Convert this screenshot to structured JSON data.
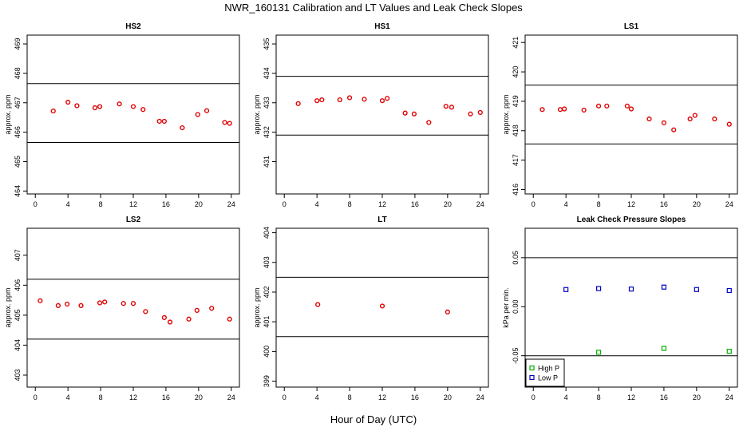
{
  "figure": {
    "title": "NWR_160131  Calibration and LT Values and Leak Check Slopes",
    "xlabel": "Hour of Day (UTC)"
  },
  "colors": {
    "cal_points": "#e00000",
    "high_p": "#00b000",
    "low_p": "#0000c8",
    "lines": "#000000"
  },
  "chart_data": [
    {
      "type": "scatter",
      "title": "HS2",
      "ylabel": "approx. ppm",
      "xlim": [
        -1,
        25
      ],
      "ylim": [
        463.9,
        469.3
      ],
      "xticks": [
        0,
        4,
        8,
        12,
        16,
        20,
        24
      ],
      "yticks": [
        464,
        465,
        466,
        467,
        468,
        469
      ],
      "hlines": [
        467.65,
        465.65
      ],
      "series": [
        {
          "color": "#e00000",
          "marker": "circle",
          "x": [
            2.2,
            4.0,
            5.1,
            7.3,
            7.9,
            10.3,
            12.0,
            13.2,
            15.2,
            15.8,
            18.0,
            19.9,
            21.0,
            23.2,
            23.8
          ],
          "y": [
            466.72,
            467.02,
            466.9,
            466.83,
            466.87,
            466.96,
            466.87,
            466.77,
            466.37,
            466.37,
            466.15,
            466.6,
            466.73,
            466.33,
            466.3
          ]
        }
      ]
    },
    {
      "type": "scatter",
      "title": "HS1",
      "ylabel": "approx. ppm",
      "xlim": [
        -1,
        25
      ],
      "ylim": [
        429.9,
        435.3
      ],
      "xticks": [
        0,
        4,
        8,
        12,
        16,
        20,
        24
      ],
      "yticks": [
        431,
        432,
        433,
        434,
        435
      ],
      "hlines": [
        433.9,
        431.9
      ],
      "series": [
        {
          "color": "#e00000",
          "marker": "circle",
          "x": [
            1.7,
            4.0,
            4.6,
            6.8,
            8.0,
            9.8,
            12.0,
            12.6,
            14.8,
            15.9,
            17.7,
            19.8,
            20.5,
            22.8,
            24.0
          ],
          "y": [
            432.97,
            433.07,
            433.1,
            433.1,
            433.17,
            433.12,
            433.07,
            433.15,
            432.65,
            432.62,
            432.33,
            432.88,
            432.85,
            432.62,
            432.67
          ]
        }
      ]
    },
    {
      "type": "scatter",
      "title": "LS1",
      "ylabel": "approx. ppm",
      "xlim": [
        -1,
        25
      ],
      "ylim": [
        415.85,
        421.25
      ],
      "xticks": [
        0,
        4,
        8,
        12,
        16,
        20,
        24
      ],
      "yticks": [
        416,
        417,
        418,
        419,
        420,
        421
      ],
      "hlines": [
        419.55,
        417.55
      ],
      "series": [
        {
          "color": "#e00000",
          "marker": "circle",
          "x": [
            1.1,
            3.3,
            3.8,
            6.2,
            8.0,
            9.0,
            11.5,
            12.0,
            14.2,
            16.0,
            17.2,
            19.2,
            19.8,
            22.2,
            24.0
          ],
          "y": [
            418.72,
            418.72,
            418.74,
            418.7,
            418.84,
            418.84,
            418.84,
            418.74,
            418.4,
            418.27,
            418.03,
            418.4,
            418.52,
            418.4,
            418.22
          ]
        }
      ]
    },
    {
      "type": "scatter",
      "title": "LS2",
      "ylabel": "approx. ppm",
      "xlim": [
        -1,
        25
      ],
      "ylim": [
        402.6,
        407.9
      ],
      "xticks": [
        0,
        4,
        8,
        12,
        16,
        20,
        24
      ],
      "yticks": [
        403,
        404,
        405,
        406,
        407
      ],
      "hlines": [
        406.2,
        404.2
      ],
      "series": [
        {
          "color": "#e00000",
          "marker": "circle",
          "x": [
            0.6,
            2.8,
            3.9,
            5.6,
            7.9,
            8.5,
            10.8,
            12.0,
            13.5,
            15.8,
            16.5,
            18.8,
            19.8,
            21.6,
            23.8
          ],
          "y": [
            405.48,
            405.32,
            405.37,
            405.32,
            405.41,
            405.44,
            405.39,
            405.39,
            405.12,
            404.92,
            404.77,
            404.87,
            405.16,
            405.23,
            404.87
          ]
        }
      ]
    },
    {
      "type": "scatter",
      "title": "LT",
      "ylabel": "approx. ppm",
      "xlim": [
        -1,
        25
      ],
      "ylim": [
        398.8,
        404.15
      ],
      "xticks": [
        0,
        4,
        8,
        12,
        16,
        20,
        24
      ],
      "yticks": [
        399,
        400,
        401,
        402,
        403,
        404
      ],
      "hlines": [
        402.5,
        400.5
      ],
      "series": [
        {
          "color": "#e00000",
          "marker": "circle",
          "x": [
            4.1,
            12.0,
            20.0
          ],
          "y": [
            401.58,
            401.53,
            401.33
          ]
        }
      ]
    },
    {
      "type": "scatter",
      "title": "Leak Check Pressure Slopes",
      "ylabel": "kPa per min.",
      "xlim": [
        -1,
        25
      ],
      "ylim": [
        -0.082,
        0.08
      ],
      "xticks": [
        0,
        4,
        8,
        12,
        16,
        20,
        24
      ],
      "yticks": [
        -0.05,
        0.0,
        0.05
      ],
      "ytick_labels": [
        "-0.05",
        "0.00",
        "0.05"
      ],
      "hlines": [
        0.05,
        -0.05
      ],
      "legend": {
        "placement": "bottom-left",
        "entries": [
          "High P",
          "Low P"
        ]
      },
      "series": [
        {
          "name": "High P",
          "color": "#00b000",
          "marker": "square",
          "x": [
            8.0,
            16.0,
            24.0
          ],
          "y": [
            -0.0465,
            -0.0425,
            -0.0455
          ]
        },
        {
          "name": "Low P",
          "color": "#0000c8",
          "marker": "square",
          "x": [
            4.0,
            8.0,
            12.0,
            16.0,
            20.0,
            24.0
          ],
          "y": [
            0.0175,
            0.0185,
            0.018,
            0.02,
            0.0175,
            0.0165
          ]
        }
      ]
    }
  ]
}
